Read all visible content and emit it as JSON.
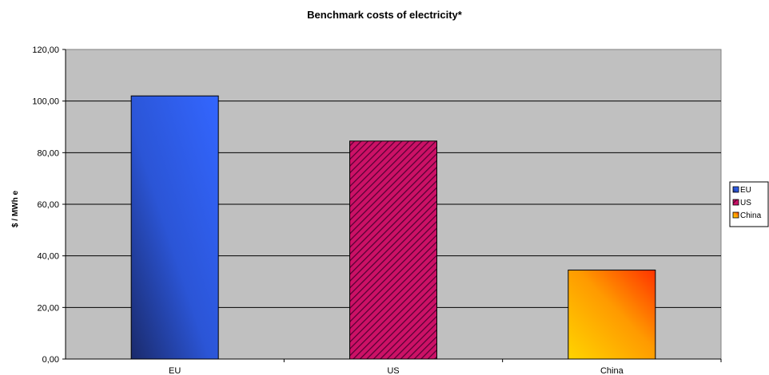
{
  "chart_data": {
    "type": "bar",
    "title": "Benchmark costs of electricity*",
    "xlabel": "",
    "ylabel": "$ / MWh e",
    "categories": [
      "EU",
      "US",
      "China"
    ],
    "values": [
      102,
      84.5,
      34.5
    ],
    "ylim": [
      0,
      120
    ],
    "yticks": [
      0,
      20,
      40,
      60,
      80,
      100,
      120
    ],
    "ytick_labels": [
      "0,00",
      "20,00",
      "40,00",
      "60,00",
      "80,00",
      "100,00",
      "120,00"
    ],
    "grid": true,
    "legend": {
      "placement": "right",
      "entries": [
        "EU",
        "US",
        "China"
      ]
    },
    "colors": {
      "plot_background": "#c0c0c0",
      "EU": "#3366ff",
      "EU_dark": "#1a2a6b",
      "US": "#cc1166",
      "US_hatch": "#550033",
      "China_light": "#ffd400",
      "China_dark": "#ff3300"
    }
  }
}
